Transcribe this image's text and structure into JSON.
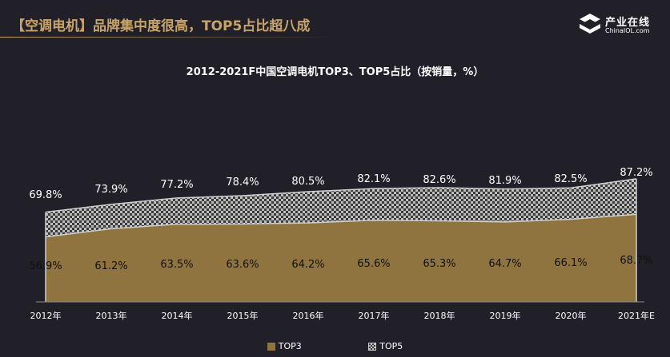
{
  "header": {
    "title": "【空调电机】品牌集中度很高，TOP5占比超八成",
    "logo_text": "产业在线",
    "logo_sub": "ChinaIOL.com"
  },
  "colors": {
    "background": "#212028",
    "accent": "#c8a46a",
    "top3": "#8f7440",
    "top5": "#3a3a3a"
  },
  "chart_data": {
    "type": "area",
    "title": "2012-2021F中国空调电机TOP3、TOP5占比（按销量，%）",
    "categories": [
      "2012年",
      "2013年",
      "2014年",
      "2015年",
      "2016年",
      "2017年",
      "2018年",
      "2019年",
      "2020年",
      "2021年E"
    ],
    "series": [
      {
        "name": "TOP3",
        "values": [
          56.9,
          61.2,
          63.5,
          63.6,
          64.2,
          65.6,
          65.3,
          64.7,
          66.1,
          68.7
        ],
        "labels": [
          "56.9%",
          "61.2%",
          "63.5%",
          "63.6%",
          "64.2%",
          "65.6%",
          "65.3%",
          "64.7%",
          "66.1%",
          "68.7%"
        ]
      },
      {
        "name": "TOP5",
        "values": [
          69.8,
          73.9,
          77.2,
          78.4,
          80.5,
          82.1,
          82.6,
          81.9,
          82.5,
          87.2
        ],
        "labels": [
          "69.8%",
          "73.9%",
          "77.2%",
          "78.4%",
          "80.5%",
          "82.1%",
          "82.6%",
          "81.9%",
          "82.5%",
          "87.2%"
        ]
      }
    ],
    "stacked": true,
    "legend_position": "bottom",
    "grid": false
  }
}
